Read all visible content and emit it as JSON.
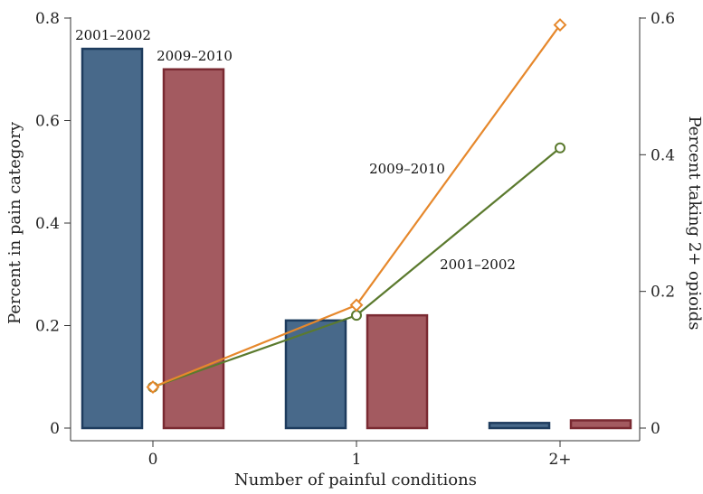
{
  "chart_data": {
    "type": "bar",
    "categories": [
      "0",
      "1",
      "2+"
    ],
    "bar_series": [
      {
        "name": "2001–2002",
        "values": [
          0.74,
          0.21,
          0.01
        ],
        "color": "#48698a",
        "border": "#1e3c5e"
      },
      {
        "name": "2009–2010",
        "values": [
          0.7,
          0.22,
          0.015
        ],
        "color": "#a35a60",
        "border": "#7a2a32"
      }
    ],
    "line_series": [
      {
        "name": "2001–2002",
        "values": [
          0.06,
          0.165,
          0.41
        ],
        "color": "#5b7a2e",
        "marker": "circle"
      },
      {
        "name": "2009–2010",
        "values": [
          0.06,
          0.18,
          0.59
        ],
        "color": "#e6882c",
        "marker": "diamond"
      }
    ],
    "xlabel": "Number of painful conditions",
    "ylabel": "Percent in pain category",
    "y2label": "Percent taking 2+ opioids",
    "ylim": [
      0,
      0.8
    ],
    "y2lim": [
      0,
      0.6
    ],
    "yticks": [
      "0",
      "0.2",
      "0.4",
      "0.6",
      "0.8"
    ],
    "y2ticks": [
      "0",
      "0.2",
      "0.4",
      "0.6"
    ],
    "annotations": [
      "2001–2002",
      "2009–2010",
      "2009–2010",
      "2001–2002"
    ]
  }
}
